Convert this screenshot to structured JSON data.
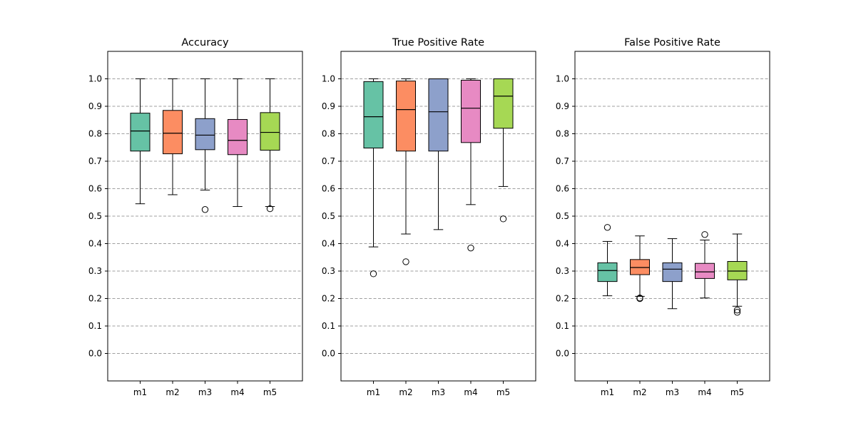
{
  "chart_data": [
    {
      "type": "box",
      "title": "Accuracy",
      "categories": [
        "m1",
        "m2",
        "m3",
        "m4",
        "m5"
      ],
      "ylim": [
        -0.1,
        1.1
      ],
      "yticks": [
        0.0,
        0.1,
        0.2,
        0.3,
        0.4,
        0.5,
        0.6,
        0.7,
        0.8,
        0.9,
        1.0
      ],
      "ytick_labels": [
        "0.0",
        "0.1",
        "0.2",
        "0.3",
        "0.4",
        "0.5",
        "0.6",
        "0.7",
        "0.8",
        "0.9",
        "1.0"
      ],
      "grid": "horizontal dashed",
      "boxes": [
        {
          "name": "m1",
          "color": "#66c2a5",
          "whisker_low": 0.545,
          "q1": 0.737,
          "median": 0.81,
          "q3": 0.875,
          "whisker_high": 1.0,
          "outliers": []
        },
        {
          "name": "m2",
          "color": "#fc8d62",
          "whisker_low": 0.578,
          "q1": 0.727,
          "median": 0.802,
          "q3": 0.885,
          "whisker_high": 1.0,
          "outliers": []
        },
        {
          "name": "m3",
          "color": "#8da0cb",
          "whisker_low": 0.595,
          "q1": 0.742,
          "median": 0.795,
          "q3": 0.855,
          "whisker_high": 1.0,
          "outliers": [
            0.524
          ]
        },
        {
          "name": "m4",
          "color": "#e78ac3",
          "whisker_low": 0.535,
          "q1": 0.724,
          "median": 0.776,
          "q3": 0.852,
          "whisker_high": 1.0,
          "outliers": []
        },
        {
          "name": "m5",
          "color": "#a6d854",
          "whisker_low": 0.535,
          "q1": 0.74,
          "median": 0.805,
          "q3": 0.877,
          "whisker_high": 1.0,
          "outliers": [
            0.527
          ]
        }
      ]
    },
    {
      "type": "box",
      "title": "True Positive Rate",
      "categories": [
        "m1",
        "m2",
        "m3",
        "m4",
        "m5"
      ],
      "ylim": [
        -0.1,
        1.1
      ],
      "yticks": [
        0.0,
        0.1,
        0.2,
        0.3,
        0.4,
        0.5,
        0.6,
        0.7,
        0.8,
        0.9,
        1.0
      ],
      "ytick_labels": [
        "0.0",
        "0.1",
        "0.2",
        "0.3",
        "0.4",
        "0.5",
        "0.6",
        "0.7",
        "0.8",
        "0.9",
        "1.0"
      ],
      "grid": "horizontal dashed",
      "boxes": [
        {
          "name": "m1",
          "color": "#66c2a5",
          "whisker_low": 0.388,
          "q1": 0.748,
          "median": 0.862,
          "q3": 0.99,
          "whisker_high": 1.0,
          "outliers": [
            0.29
          ]
        },
        {
          "name": "m2",
          "color": "#fc8d62",
          "whisker_low": 0.435,
          "q1": 0.737,
          "median": 0.888,
          "q3": 0.992,
          "whisker_high": 1.0,
          "outliers": [
            0.334
          ]
        },
        {
          "name": "m3",
          "color": "#8da0cb",
          "whisker_low": 0.451,
          "q1": 0.737,
          "median": 0.88,
          "q3": 1.0,
          "whisker_high": 1.0,
          "outliers": []
        },
        {
          "name": "m4",
          "color": "#e78ac3",
          "whisker_low": 0.542,
          "q1": 0.768,
          "median": 0.893,
          "q3": 0.995,
          "whisker_high": 1.0,
          "outliers": [
            0.384
          ]
        },
        {
          "name": "m5",
          "color": "#a6d854",
          "whisker_low": 0.608,
          "q1": 0.82,
          "median": 0.937,
          "q3": 1.0,
          "whisker_high": 1.0,
          "outliers": [
            0.49
          ]
        }
      ]
    },
    {
      "type": "box",
      "title": "False Positive Rate",
      "categories": [
        "m1",
        "m2",
        "m3",
        "m4",
        "m5"
      ],
      "ylim": [
        -0.1,
        1.1
      ],
      "yticks": [
        0.0,
        0.1,
        0.2,
        0.3,
        0.4,
        0.5,
        0.6,
        0.7,
        0.8,
        0.9,
        1.0
      ],
      "ytick_labels": [
        "0.0",
        "0.1",
        "0.2",
        "0.3",
        "0.4",
        "0.5",
        "0.6",
        "0.7",
        "0.8",
        "0.9",
        "1.0"
      ],
      "grid": "horizontal dashed",
      "boxes": [
        {
          "name": "m1",
          "color": "#66c2a5",
          "whisker_low": 0.21,
          "q1": 0.262,
          "median": 0.302,
          "q3": 0.33,
          "whisker_high": 0.408,
          "outliers": [
            0.459
          ]
        },
        {
          "name": "m2",
          "color": "#fc8d62",
          "whisker_low": 0.208,
          "q1": 0.287,
          "median": 0.313,
          "q3": 0.342,
          "whisker_high": 0.428,
          "outliers": [
            0.2,
            0.202
          ]
        },
        {
          "name": "m3",
          "color": "#8da0cb",
          "whisker_low": 0.163,
          "q1": 0.262,
          "median": 0.307,
          "q3": 0.33,
          "whisker_high": 0.418,
          "outliers": []
        },
        {
          "name": "m4",
          "color": "#e78ac3",
          "whisker_low": 0.202,
          "q1": 0.273,
          "median": 0.297,
          "q3": 0.328,
          "whisker_high": 0.413,
          "outliers": [
            0.433
          ]
        },
        {
          "name": "m5",
          "color": "#a6d854",
          "whisker_low": 0.172,
          "q1": 0.268,
          "median": 0.3,
          "q3": 0.335,
          "whisker_high": 0.435,
          "outliers": [
            0.15,
            0.158
          ]
        }
      ]
    }
  ]
}
